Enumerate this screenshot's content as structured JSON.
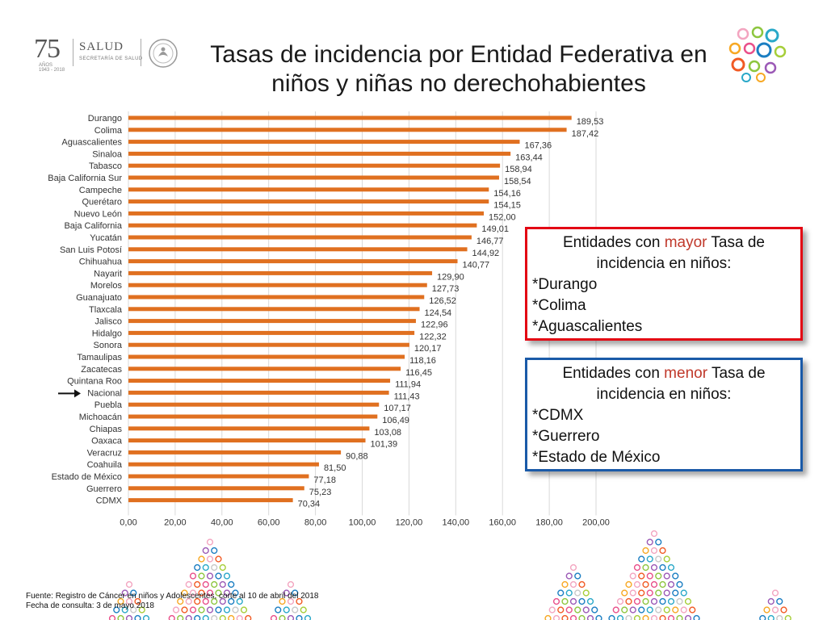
{
  "logo": {
    "number": "75",
    "anos": "AÑOS",
    "years": "1943 - 2018",
    "salud": "SALUD",
    "secretaria": "SECRETARÍA DE SALUD"
  },
  "title": {
    "line1": "Tasas de incidencia por Entidad Federativa en",
    "line2": "niños y niñas no derechohabientes"
  },
  "chart_data": {
    "type": "bar",
    "orientation": "horizontal",
    "categories": [
      "Durango",
      "Colima",
      "Aguascalientes",
      "Sinaloa",
      "Tabasco",
      "Baja California Sur",
      "Campeche",
      "Querétaro",
      "Nuevo León",
      "Baja California",
      "Yucatán",
      "San Luis Potosí",
      "Chihuahua",
      "Nayarit",
      "Morelos",
      "Guanajuato",
      "Tlaxcala",
      "Jalisco",
      "Hidalgo",
      "Sonora",
      "Tamaulipas",
      "Zacatecas",
      "Quintana Roo",
      "Nacional",
      "Puebla",
      "Michoacán",
      "Chiapas",
      "Oaxaca",
      "Veracruz",
      "Coahuila",
      "Estado de México",
      "Guerrero",
      "CDMX"
    ],
    "values": [
      189.53,
      187.42,
      167.36,
      163.44,
      158.94,
      158.54,
      154.16,
      154.15,
      152.0,
      149.01,
      146.77,
      144.92,
      140.77,
      129.9,
      127.73,
      126.52,
      124.54,
      122.96,
      122.32,
      120.17,
      118.16,
      116.45,
      111.94,
      111.43,
      107.17,
      106.49,
      103.08,
      101.39,
      90.88,
      81.5,
      77.18,
      75.23,
      70.34
    ],
    "value_labels": [
      "189,53",
      "187,42",
      "167,36",
      "163,44",
      "158,94",
      "158,54",
      "154,16",
      "154,15",
      "152,00",
      "149,01",
      "146,77",
      "144,92",
      "140,77",
      "129,90",
      "127,73",
      "126,52",
      "124,54",
      "122,96",
      "122,32",
      "120,17",
      "118,16",
      "116,45",
      "111,94",
      "111,43",
      "107,17",
      "106,49",
      "103,08",
      "101,39",
      "90,88",
      "81,50",
      "77,18",
      "75,23",
      "70,34"
    ],
    "xlim": [
      0,
      200
    ],
    "x_ticks": [
      0,
      20,
      40,
      60,
      80,
      100,
      120,
      140,
      160,
      180,
      200
    ],
    "x_tick_labels": [
      "0,00",
      "20,00",
      "40,00",
      "60,00",
      "80,00",
      "100,00",
      "120,00",
      "140,00",
      "160,00",
      "180,00",
      "200,00"
    ],
    "bar_color": "#e07020",
    "grid": "vertical",
    "highlighted_category": "Nacional"
  },
  "box_mayor": {
    "head_pre": "Entidades con ",
    "head_hl": "mayor",
    "head_post": " Tasa de incidencia en niños:",
    "items": [
      "*Durango",
      "*Colima",
      "*Aguascalientes"
    ],
    "border_color": "#e30613"
  },
  "box_menor": {
    "head_pre": "Entidades con ",
    "head_hl": "menor",
    "head_post": " Tasa de incidencia en niños:",
    "items": [
      "*CDMX",
      "*Guerrero",
      "*Estado de México"
    ],
    "border_color": "#1a5aa8"
  },
  "footer": {
    "source": "Fuente: Registro de Cáncer en niños y Adolescentes, corte al 10 de abril del 2018",
    "date": "Fecha de consulta: 3 de mayo 2018"
  }
}
